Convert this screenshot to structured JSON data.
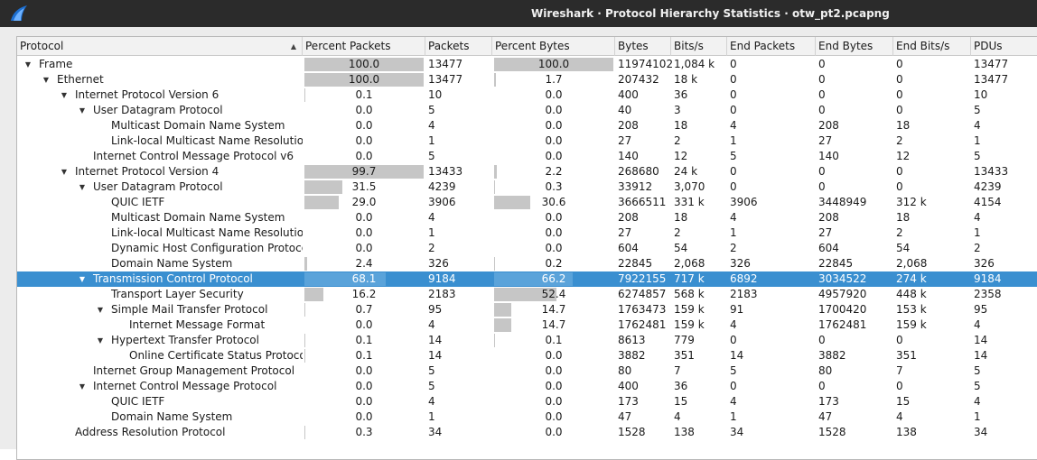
{
  "window": {
    "title": "Wireshark · Protocol Hierarchy Statistics · otw_pt2.pcapng",
    "app_icon": "wireshark-fin-icon"
  },
  "colors": {
    "selected_row": "#3a8fd0",
    "bar": "#c6c6c6",
    "selected_bar": "#5aa3da",
    "titlebar": "#2b2b2b"
  },
  "columns": [
    "Protocol",
    "Percent Packets",
    "Packets",
    "Percent Bytes",
    "Bytes",
    "Bits/s",
    "End Packets",
    "End Bytes",
    "End Bits/s",
    "PDUs"
  ],
  "sort": {
    "column": "Protocol",
    "direction": "ascending"
  },
  "rows": [
    {
      "protocol": "Frame",
      "depth": 0,
      "expander": "expanded",
      "pct_packets": "100.0",
      "pct_packets_value": 100.0,
      "packets": "13477",
      "pct_bytes": "100.0",
      "pct_bytes_value": 100.0,
      "bytes": "11974102",
      "bits_s": "1,084 k",
      "end_packets": "0",
      "end_bytes": "0",
      "end_bits_s": "0",
      "pdus": "13477"
    },
    {
      "protocol": "Ethernet",
      "depth": 1,
      "expander": "expanded",
      "pct_packets": "100.0",
      "pct_packets_value": 100.0,
      "packets": "13477",
      "pct_bytes": "1.7",
      "pct_bytes_value": 1.7,
      "bytes": "207432",
      "bits_s": "18 k",
      "end_packets": "0",
      "end_bytes": "0",
      "end_bits_s": "0",
      "pdus": "13477"
    },
    {
      "protocol": "Internet Protocol Version 6",
      "depth": 2,
      "expander": "expanded",
      "pct_packets": "0.1",
      "pct_packets_value": 0.1,
      "packets": "10",
      "pct_bytes": "0.0",
      "pct_bytes_value": 0.0,
      "bytes": "400",
      "bits_s": "36",
      "end_packets": "0",
      "end_bytes": "0",
      "end_bits_s": "0",
      "pdus": "10"
    },
    {
      "protocol": "User Datagram Protocol",
      "depth": 3,
      "expander": "expanded",
      "pct_packets": "0.0",
      "pct_packets_value": 0.0,
      "packets": "5",
      "pct_bytes": "0.0",
      "pct_bytes_value": 0.0,
      "bytes": "40",
      "bits_s": "3",
      "end_packets": "0",
      "end_bytes": "0",
      "end_bits_s": "0",
      "pdus": "5"
    },
    {
      "protocol": "Multicast Domain Name System",
      "depth": 4,
      "expander": "none",
      "pct_packets": "0.0",
      "pct_packets_value": 0.0,
      "packets": "4",
      "pct_bytes": "0.0",
      "pct_bytes_value": 0.0,
      "bytes": "208",
      "bits_s": "18",
      "end_packets": "4",
      "end_bytes": "208",
      "end_bits_s": "18",
      "pdus": "4"
    },
    {
      "protocol": "Link-local Multicast Name Resolution",
      "depth": 4,
      "expander": "none",
      "pct_packets": "0.0",
      "pct_packets_value": 0.0,
      "packets": "1",
      "pct_bytes": "0.0",
      "pct_bytes_value": 0.0,
      "bytes": "27",
      "bits_s": "2",
      "end_packets": "1",
      "end_bytes": "27",
      "end_bits_s": "2",
      "pdus": "1"
    },
    {
      "protocol": "Internet Control Message Protocol v6",
      "depth": 3,
      "expander": "none",
      "pct_packets": "0.0",
      "pct_packets_value": 0.0,
      "packets": "5",
      "pct_bytes": "0.0",
      "pct_bytes_value": 0.0,
      "bytes": "140",
      "bits_s": "12",
      "end_packets": "5",
      "end_bytes": "140",
      "end_bits_s": "12",
      "pdus": "5"
    },
    {
      "protocol": "Internet Protocol Version 4",
      "depth": 2,
      "expander": "expanded",
      "pct_packets": "99.7",
      "pct_packets_value": 99.7,
      "packets": "13433",
      "pct_bytes": "2.2",
      "pct_bytes_value": 2.2,
      "bytes": "268680",
      "bits_s": "24 k",
      "end_packets": "0",
      "end_bytes": "0",
      "end_bits_s": "0",
      "pdus": "13433"
    },
    {
      "protocol": "User Datagram Protocol",
      "depth": 3,
      "expander": "expanded",
      "pct_packets": "31.5",
      "pct_packets_value": 31.5,
      "packets": "4239",
      "pct_bytes": "0.3",
      "pct_bytes_value": 0.3,
      "bytes": "33912",
      "bits_s": "3,070",
      "end_packets": "0",
      "end_bytes": "0",
      "end_bits_s": "0",
      "pdus": "4239"
    },
    {
      "protocol": "QUIC IETF",
      "depth": 4,
      "expander": "none",
      "pct_packets": "29.0",
      "pct_packets_value": 29.0,
      "packets": "3906",
      "pct_bytes": "30.6",
      "pct_bytes_value": 30.6,
      "bytes": "3666511",
      "bits_s": "331 k",
      "end_packets": "3906",
      "end_bytes": "3448949",
      "end_bits_s": "312 k",
      "pdus": "4154"
    },
    {
      "protocol": "Multicast Domain Name System",
      "depth": 4,
      "expander": "none",
      "pct_packets": "0.0",
      "pct_packets_value": 0.0,
      "packets": "4",
      "pct_bytes": "0.0",
      "pct_bytes_value": 0.0,
      "bytes": "208",
      "bits_s": "18",
      "end_packets": "4",
      "end_bytes": "208",
      "end_bits_s": "18",
      "pdus": "4"
    },
    {
      "protocol": "Link-local Multicast Name Resolution",
      "depth": 4,
      "expander": "none",
      "pct_packets": "0.0",
      "pct_packets_value": 0.0,
      "packets": "1",
      "pct_bytes": "0.0",
      "pct_bytes_value": 0.0,
      "bytes": "27",
      "bits_s": "2",
      "end_packets": "1",
      "end_bytes": "27",
      "end_bits_s": "2",
      "pdus": "1"
    },
    {
      "protocol": "Dynamic Host Configuration Protocol",
      "depth": 4,
      "expander": "none",
      "pct_packets": "0.0",
      "pct_packets_value": 0.0,
      "packets": "2",
      "pct_bytes": "0.0",
      "pct_bytes_value": 0.0,
      "bytes": "604",
      "bits_s": "54",
      "end_packets": "2",
      "end_bytes": "604",
      "end_bits_s": "54",
      "pdus": "2"
    },
    {
      "protocol": "Domain Name System",
      "depth": 4,
      "expander": "none",
      "pct_packets": "2.4",
      "pct_packets_value": 2.4,
      "packets": "326",
      "pct_bytes": "0.2",
      "pct_bytes_value": 0.2,
      "bytes": "22845",
      "bits_s": "2,068",
      "end_packets": "326",
      "end_bytes": "22845",
      "end_bits_s": "2,068",
      "pdus": "326"
    },
    {
      "protocol": "Transmission Control Protocol",
      "depth": 3,
      "expander": "expanded",
      "selected": true,
      "pct_packets": "68.1",
      "pct_packets_value": 68.1,
      "packets": "9184",
      "pct_bytes": "66.2",
      "pct_bytes_value": 66.2,
      "bytes": "7922155",
      "bits_s": "717 k",
      "end_packets": "6892",
      "end_bytes": "3034522",
      "end_bits_s": "274 k",
      "pdus": "9184"
    },
    {
      "protocol": "Transport Layer Security",
      "depth": 4,
      "expander": "none",
      "pct_packets": "16.2",
      "pct_packets_value": 16.2,
      "packets": "2183",
      "pct_bytes": "52.4",
      "pct_bytes_value": 52.4,
      "bytes": "6274857",
      "bits_s": "568 k",
      "end_packets": "2183",
      "end_bytes": "4957920",
      "end_bits_s": "448 k",
      "pdus": "2358"
    },
    {
      "protocol": "Simple Mail Transfer Protocol",
      "depth": 4,
      "expander": "expanded",
      "pct_packets": "0.7",
      "pct_packets_value": 0.7,
      "packets": "95",
      "pct_bytes": "14.7",
      "pct_bytes_value": 14.7,
      "bytes": "1763473",
      "bits_s": "159 k",
      "end_packets": "91",
      "end_bytes": "1700420",
      "end_bits_s": "153 k",
      "pdus": "95"
    },
    {
      "protocol": "Internet Message Format",
      "depth": 5,
      "expander": "none",
      "pct_packets": "0.0",
      "pct_packets_value": 0.0,
      "packets": "4",
      "pct_bytes": "14.7",
      "pct_bytes_value": 14.7,
      "bytes": "1762481",
      "bits_s": "159 k",
      "end_packets": "4",
      "end_bytes": "1762481",
      "end_bits_s": "159 k",
      "pdus": "4"
    },
    {
      "protocol": "Hypertext Transfer Protocol",
      "depth": 4,
      "expander": "expanded",
      "pct_packets": "0.1",
      "pct_packets_value": 0.1,
      "packets": "14",
      "pct_bytes": "0.1",
      "pct_bytes_value": 0.1,
      "bytes": "8613",
      "bits_s": "779",
      "end_packets": "0",
      "end_bytes": "0",
      "end_bits_s": "0",
      "pdus": "14"
    },
    {
      "protocol": "Online Certificate Status Protocol",
      "depth": 5,
      "expander": "none",
      "pct_packets": "0.1",
      "pct_packets_value": 0.1,
      "packets": "14",
      "pct_bytes": "0.0",
      "pct_bytes_value": 0.0,
      "bytes": "3882",
      "bits_s": "351",
      "end_packets": "14",
      "end_bytes": "3882",
      "end_bits_s": "351",
      "pdus": "14"
    },
    {
      "protocol": "Internet Group Management Protocol",
      "depth": 3,
      "expander": "none",
      "pct_packets": "0.0",
      "pct_packets_value": 0.0,
      "packets": "5",
      "pct_bytes": "0.0",
      "pct_bytes_value": 0.0,
      "bytes": "80",
      "bits_s": "7",
      "end_packets": "5",
      "end_bytes": "80",
      "end_bits_s": "7",
      "pdus": "5"
    },
    {
      "protocol": "Internet Control Message Protocol",
      "depth": 3,
      "expander": "expanded",
      "pct_packets": "0.0",
      "pct_packets_value": 0.0,
      "packets": "5",
      "pct_bytes": "0.0",
      "pct_bytes_value": 0.0,
      "bytes": "400",
      "bits_s": "36",
      "end_packets": "0",
      "end_bytes": "0",
      "end_bits_s": "0",
      "pdus": "5"
    },
    {
      "protocol": "QUIC IETF",
      "depth": 4,
      "expander": "none",
      "pct_packets": "0.0",
      "pct_packets_value": 0.0,
      "packets": "4",
      "pct_bytes": "0.0",
      "pct_bytes_value": 0.0,
      "bytes": "173",
      "bits_s": "15",
      "end_packets": "4",
      "end_bytes": "173",
      "end_bits_s": "15",
      "pdus": "4"
    },
    {
      "protocol": "Domain Name System",
      "depth": 4,
      "expander": "none",
      "pct_packets": "0.0",
      "pct_packets_value": 0.0,
      "packets": "1",
      "pct_bytes": "0.0",
      "pct_bytes_value": 0.0,
      "bytes": "47",
      "bits_s": "4",
      "end_packets": "1",
      "end_bytes": "47",
      "end_bits_s": "4",
      "pdus": "1"
    },
    {
      "protocol": "Address Resolution Protocol",
      "depth": 2,
      "expander": "none",
      "pct_packets": "0.3",
      "pct_packets_value": 0.3,
      "packets": "34",
      "pct_bytes": "0.0",
      "pct_bytes_value": 0.0,
      "bytes": "1528",
      "bits_s": "138",
      "end_packets": "34",
      "end_bytes": "1528",
      "end_bits_s": "138",
      "pdus": "34"
    }
  ]
}
